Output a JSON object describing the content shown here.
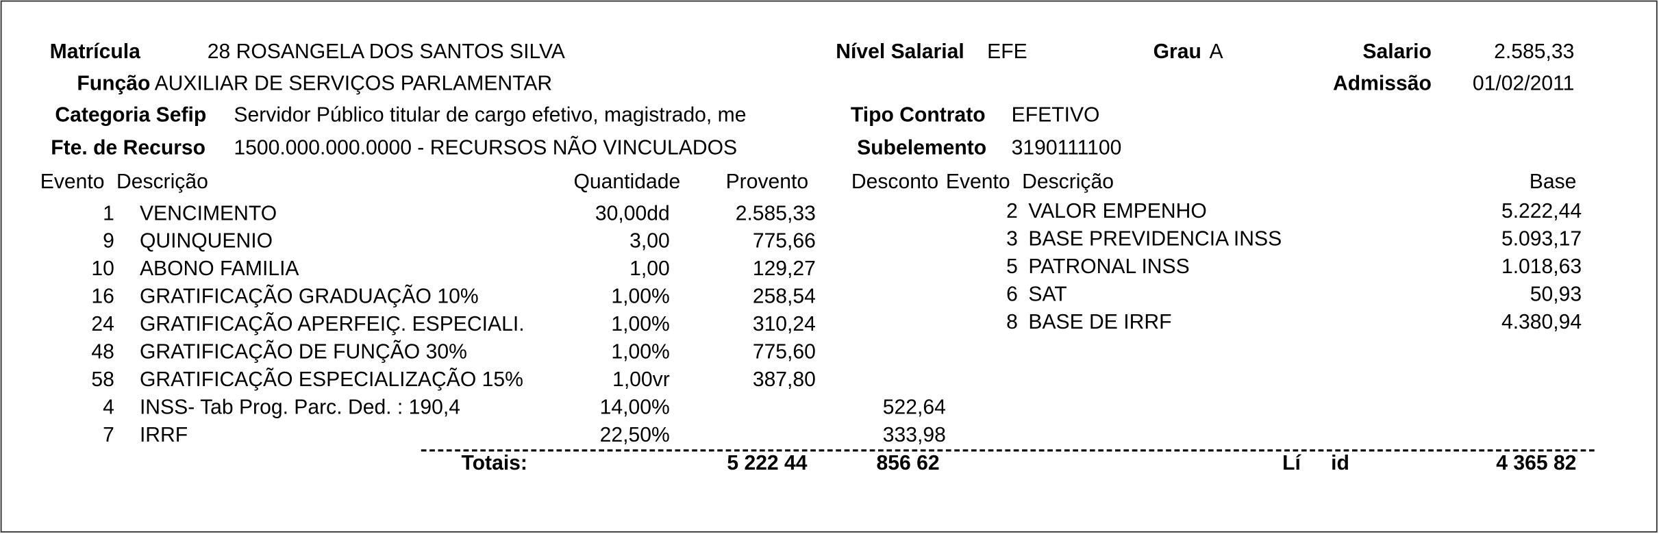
{
  "header": {
    "matricula": {
      "label": "Matrícula",
      "value": "28 ROSANGELA DOS SANTOS SILVA"
    },
    "nivel_salarial": {
      "label": "Nível Salarial",
      "value": "EFE"
    },
    "grau": {
      "label": "Grau",
      "value": "A"
    },
    "salario": {
      "label": "Salario",
      "value": "2.585,33"
    },
    "funcao": {
      "label": "Função",
      "value": "AUXILIAR DE SERVIÇOS PARLAMENTAR"
    },
    "admissao": {
      "label": "Admissão",
      "value": "01/02/2011"
    },
    "categoria_sefip": {
      "label": "Categoria Sefip",
      "value": "Servidor Público titular de cargo efetivo, magistrado, me"
    },
    "tipo_contrato": {
      "label": "Tipo Contrato",
      "value": "EFETIVO"
    },
    "fonte_recurso": {
      "label": "Fte. de Recurso",
      "value": "1500.000.000.0000 - RECURSOS NÃO VINCULADOS"
    },
    "subelemento": {
      "label": "Subelemento",
      "value": "3190111100"
    }
  },
  "table": {
    "columns": [
      "Evento",
      "Descrição",
      "Quantidade",
      "Provento",
      "Desconto",
      "Evento",
      "Descrição",
      "Base"
    ],
    "left_rows": [
      [
        "1",
        "VENCIMENTO",
        "30,00dd",
        "2.585,33",
        null
      ],
      [
        "9",
        "QUINQUENIO",
        "3,00",
        "775,66",
        null
      ],
      [
        "10",
        "ABONO FAMILIA",
        "1,00",
        "129,27",
        null
      ],
      [
        "16",
        "GRATIFICAÇÃO GRADUAÇÃO 10%",
        "1,00%",
        "258,54",
        null
      ],
      [
        "24",
        "GRATIFICAÇÃO APERFEIÇ. ESPECIALI.",
        "1,00%",
        "310,24",
        null
      ],
      [
        "48",
        "GRATIFICAÇÃO DE FUNÇÃO 30%",
        "1,00%",
        "775,60",
        null
      ],
      [
        "58",
        "GRATIFICAÇÃO ESPECIALIZAÇÃO 15%",
        "1,00vr",
        "387,80",
        null
      ],
      [
        "4",
        "INSS- Tab Prog. Parc. Ded. : 190,4",
        "14,00%",
        null,
        "522,64"
      ],
      [
        "7",
        "IRRF",
        "22,50%",
        null,
        "333,98"
      ]
    ],
    "right_rows": [
      [
        "2",
        "VALOR EMPENHO",
        "5.222,44"
      ],
      [
        "3",
        "BASE PREVIDENCIA INSS",
        "5.093,17"
      ],
      [
        "5",
        "PATRONAL INSS",
        "1.018,63"
      ],
      [
        "6",
        "SAT",
        "50,93"
      ],
      [
        "8",
        "BASE DE IRRF",
        "4.380,94"
      ]
    ]
  },
  "totals": {
    "label": "Totais:",
    "proventos": "5 222 44",
    "descontos": "856 62",
    "liquido_label_a": "Lí",
    "liquido_label_b": "id",
    "liquido": "4 365 82"
  }
}
